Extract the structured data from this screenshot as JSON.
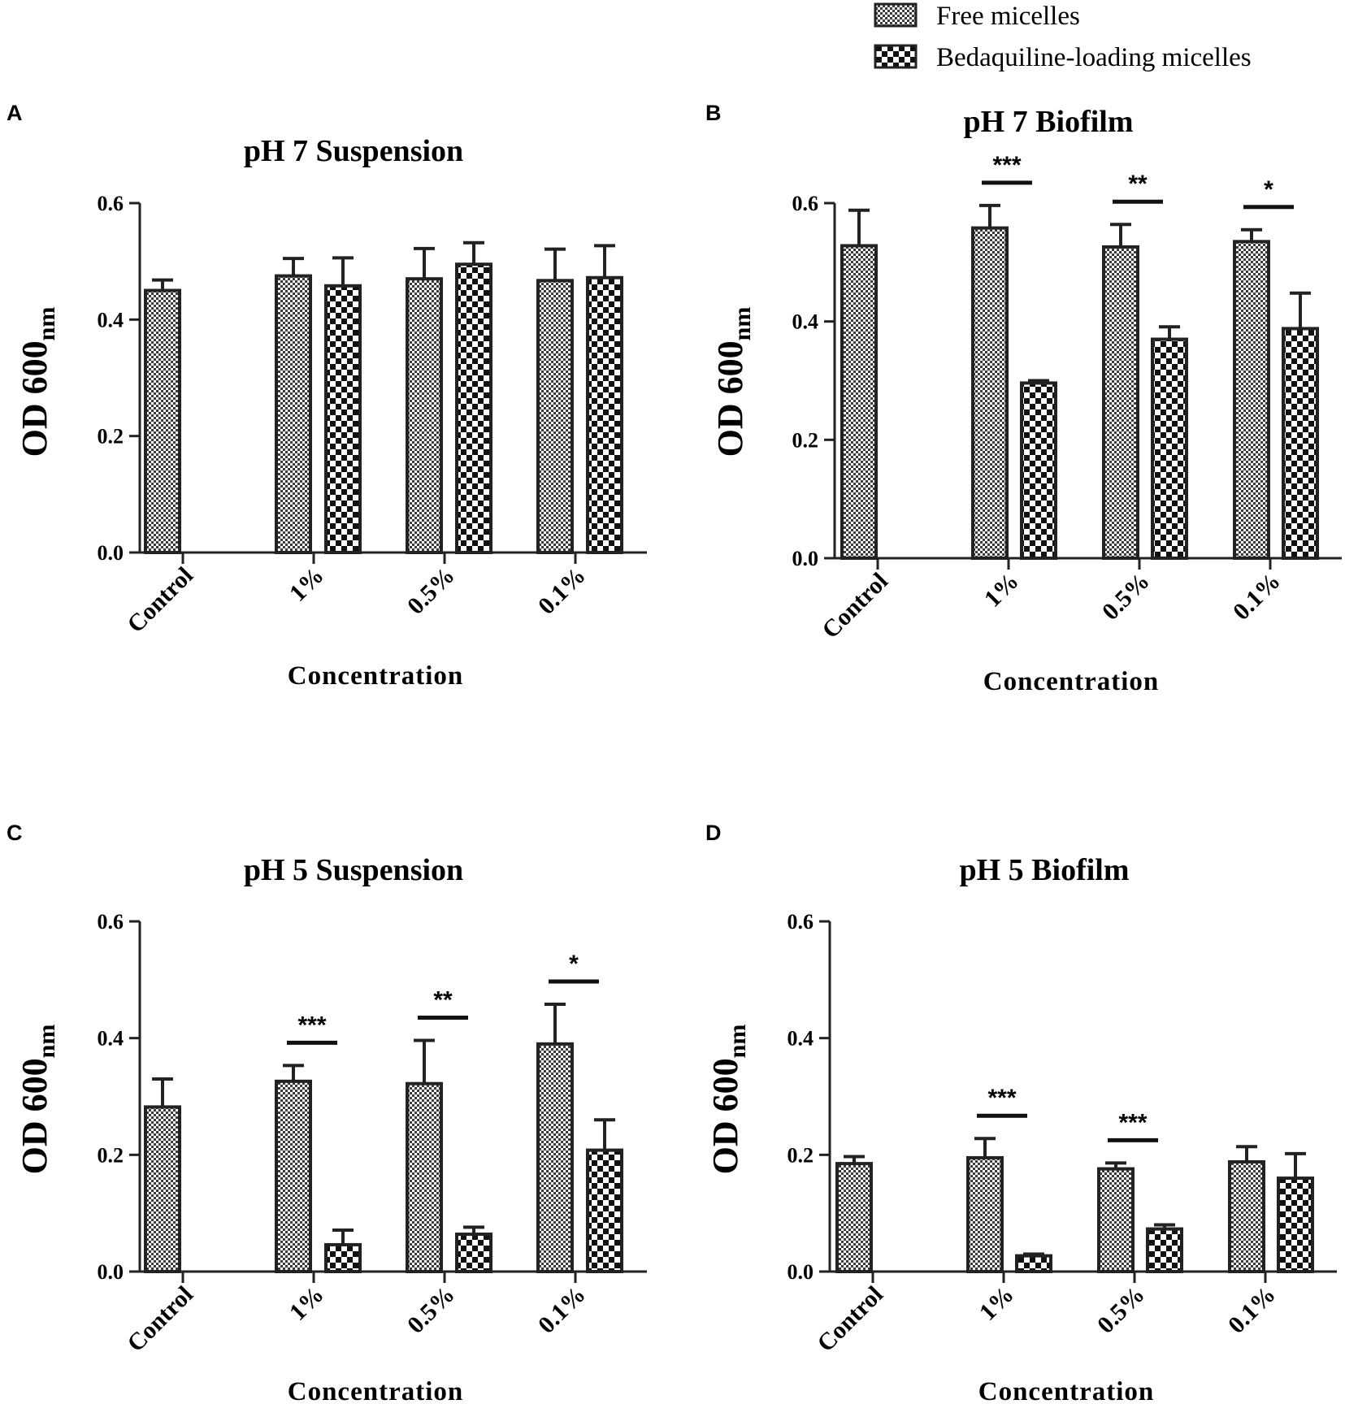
{
  "legend": {
    "free_label": "Free micelles",
    "bdq_label": "Bedaquiline-loading micelles"
  },
  "chart_data": [
    {
      "panel": "A",
      "type": "bar",
      "title": "pH 7 Suspension",
      "xlabel": "Concentration",
      "ylabel_main": "OD 600",
      "ylabel_sub": "nm",
      "ylim": [
        0,
        0.6
      ],
      "yticks": [
        "0.0",
        "0.2",
        "0.4",
        "0.6"
      ],
      "categories": [
        "Control",
        "1%",
        "0.5%",
        "0.1%"
      ],
      "series": [
        {
          "name": "Free micelles",
          "values": [
            0.45,
            0.475,
            0.47,
            0.467
          ],
          "errors": [
            0.018,
            0.03,
            0.052,
            0.054
          ]
        },
        {
          "name": "Bedaquiline-loading micelles",
          "values": [
            null,
            0.458,
            0.495,
            0.472
          ],
          "errors": [
            null,
            0.048,
            0.037,
            0.055
          ]
        }
      ],
      "significance": [
        null,
        null,
        null,
        null
      ]
    },
    {
      "panel": "B",
      "type": "bar",
      "title": "pH 7 Biofilm",
      "xlabel": "Concentration",
      "ylabel_main": "OD 600",
      "ylabel_sub": "nm",
      "ylim": [
        0,
        0.6
      ],
      "yticks": [
        "0.0",
        "0.2",
        "0.4",
        "0.6"
      ],
      "categories": [
        "Control",
        "1%",
        "0.5%",
        "0.1%"
      ],
      "series": [
        {
          "name": "Free micelles",
          "values": [
            0.528,
            0.558,
            0.526,
            0.535
          ],
          "errors": [
            0.06,
            0.038,
            0.038,
            0.02
          ]
        },
        {
          "name": "Bedaquiline-loading micelles",
          "values": [
            null,
            0.296,
            0.37,
            0.388
          ],
          "errors": [
            null,
            0.004,
            0.021,
            0.06
          ]
        }
      ],
      "significance": [
        null,
        "***",
        "**",
        "*"
      ]
    },
    {
      "panel": "C",
      "type": "bar",
      "title": "pH 5 Suspension",
      "xlabel": "Concentration",
      "ylabel_main": "OD 600",
      "ylabel_sub": "nm",
      "ylim": [
        0,
        0.6
      ],
      "yticks": [
        "0.0",
        "0.2",
        "0.4",
        "0.6"
      ],
      "categories": [
        "Control",
        "1%",
        "0.5%",
        "0.1%"
      ],
      "series": [
        {
          "name": "Free micelles",
          "values": [
            0.282,
            0.326,
            0.322,
            0.39
          ],
          "errors": [
            0.048,
            0.027,
            0.074,
            0.068
          ]
        },
        {
          "name": "Bedaquiline-loading micelles",
          "values": [
            null,
            0.046,
            0.064,
            0.208
          ],
          "errors": [
            null,
            0.025,
            0.012,
            0.052
          ]
        }
      ],
      "significance": [
        null,
        "***",
        "**",
        "*"
      ]
    },
    {
      "panel": "D",
      "type": "bar",
      "title": "pH 5 Biofilm",
      "xlabel": "Concentration",
      "ylabel_main": "OD 600",
      "ylabel_sub": "nm",
      "ylim": [
        0,
        0.6
      ],
      "yticks": [
        "0.0",
        "0.2",
        "0.4",
        "0.6"
      ],
      "categories": [
        "Control",
        "1%",
        "0.5%",
        "0.1%"
      ],
      "series": [
        {
          "name": "Free micelles",
          "values": [
            0.185,
            0.195,
            0.176,
            0.188
          ],
          "errors": [
            0.012,
            0.033,
            0.01,
            0.026
          ]
        },
        {
          "name": "Bedaquiline-loading micelles",
          "values": [
            null,
            0.027,
            0.073,
            0.16
          ],
          "errors": [
            null,
            0.003,
            0.007,
            0.042
          ]
        }
      ],
      "significance": [
        null,
        "***",
        "***",
        null
      ]
    }
  ]
}
